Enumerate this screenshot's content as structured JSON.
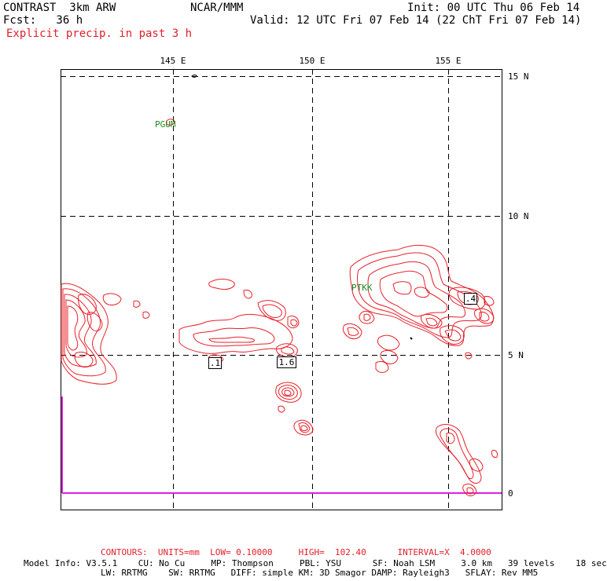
{
  "header": {
    "model": "CONTRAST  3km ARW",
    "org": "NCAR/MMM",
    "init": "Init: 00 UTC Thu 06 Feb 14",
    "fcst": "Fcst:   36 h",
    "valid": "Valid: 12 UTC Fri 07 Feb 14 (22 ChT Fri 07 Feb 14)",
    "field": "Explicit precip. in past 3 h"
  },
  "axes": {
    "lon_labels": [
      "145 E",
      "150 E",
      "155 E"
    ],
    "lat_labels": [
      "15 N",
      "10 N",
      "5 N",
      "0"
    ]
  },
  "stations": [
    "PGUM",
    "PTKK"
  ],
  "contour_labels": [
    ".1",
    "1.6",
    ".4"
  ],
  "footer": {
    "contours": "CONTOURS:  UNITS=mm  LOW= 0.10000     HIGH=  102.40      INTERVAL=X  4.0000",
    "model_info_1": "Model Info: V3.5.1    CU: No Cu     MP: Thompson     PBL: YSU      SF: Noah LSM     3.0 km   39 levels    18 sec",
    "model_info_2": "LW: RRTMG    SW: RRTMG   DIFF: simple KM: 3D Smagor DAMP: Rayleigh3   SFLAY: Rev MM5"
  },
  "colors": {
    "contour": "#e8202a",
    "station": "#1f8a1f",
    "boundary": "#e020e0",
    "title_red": "#e0202a"
  }
}
